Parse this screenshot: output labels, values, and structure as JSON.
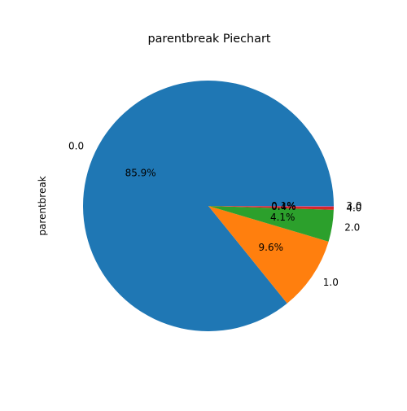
{
  "chart_data": {
    "type": "pie",
    "title": "parentbreak Piechart",
    "ylabel": "parentbreak",
    "legend": "none",
    "slices": [
      {
        "label": "0.0",
        "pct_text": "85.9%",
        "value": 85.9,
        "color": "#1f77b4"
      },
      {
        "label": "1.0",
        "pct_text": "9.6%",
        "value": 9.6,
        "color": "#ff7f0e"
      },
      {
        "label": "2.0",
        "pct_text": "4.1%",
        "value": 4.1,
        "color": "#2ca02c"
      },
      {
        "label": "4.0",
        "pct_text": "0.4%",
        "value": 0.4,
        "color": "#d62728"
      },
      {
        "label": "3.0",
        "pct_text": "0.1%",
        "value": 0.1,
        "color": "#9467bd"
      }
    ]
  }
}
